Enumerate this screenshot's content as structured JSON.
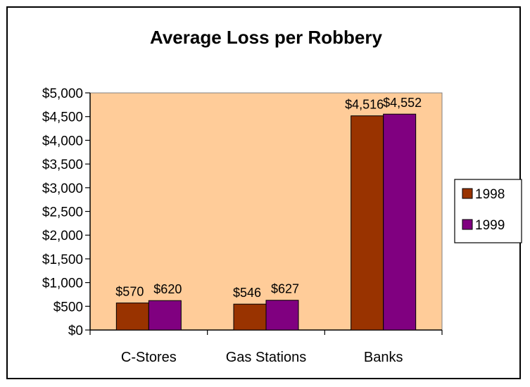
{
  "chart_data": {
    "type": "bar",
    "title": "Average Loss per Robbery",
    "categories": [
      "C-Stores",
      "Gas Stations",
      "Banks"
    ],
    "series": [
      {
        "name": "1998",
        "values": [
          570,
          546,
          4516
        ],
        "labels": [
          "$570",
          "$546",
          "$4,516"
        ],
        "color": "#993300"
      },
      {
        "name": "1999",
        "values": [
          620,
          627,
          4552
        ],
        "labels": [
          "$620",
          "$627",
          "$4,552"
        ],
        "color": "#800080"
      }
    ],
    "ylim": [
      0,
      5000
    ],
    "y_ticks": [
      0,
      500,
      1000,
      1500,
      2000,
      2500,
      3000,
      3500,
      4000,
      4500,
      5000
    ],
    "y_tick_labels": [
      "$0",
      "$500",
      "$1,000",
      "$1,500",
      "$2,000",
      "$2,500",
      "$3,000",
      "$3,500",
      "$4,000",
      "$4,500",
      "$5,000"
    ],
    "xlabel": "",
    "ylabel": "",
    "grid": false,
    "legend_position": "right",
    "plot_background": "#ffcc99"
  }
}
